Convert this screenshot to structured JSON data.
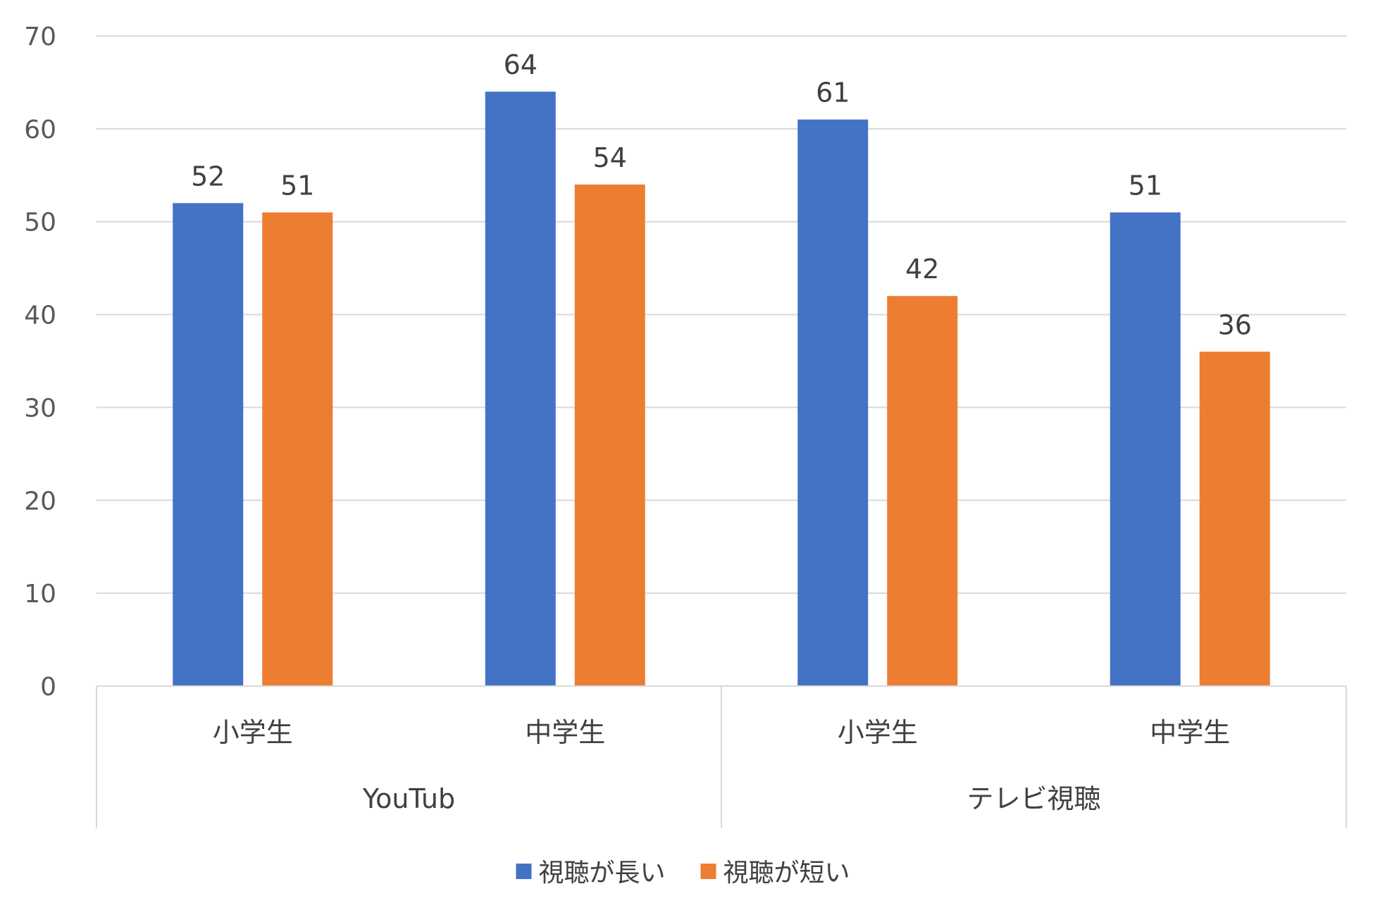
{
  "chart_data": {
    "type": "bar",
    "groups": [
      {
        "label": "YouTub",
        "categories": [
          "小学生",
          "中学生"
        ]
      },
      {
        "label": "テレビ視聴",
        "categories": [
          "小学生",
          "中学生"
        ]
      }
    ],
    "series": [
      {
        "name": "視聴が長い",
        "color": "#4472C4",
        "values": [
          52,
          64,
          61,
          51
        ]
      },
      {
        "name": "視聴が短い",
        "color": "#ED7D31",
        "values": [
          51,
          54,
          42,
          36
        ]
      }
    ],
    "data_labels": [
      [
        "52",
        "64",
        "61",
        "51"
      ],
      [
        "51",
        "54",
        "42",
        "36"
      ]
    ],
    "y_ticks": [
      "0",
      "10",
      "20",
      "30",
      "40",
      "50",
      "60",
      "70"
    ],
    "ylim": [
      0,
      70
    ],
    "grid": true,
    "legend": "bottom"
  }
}
